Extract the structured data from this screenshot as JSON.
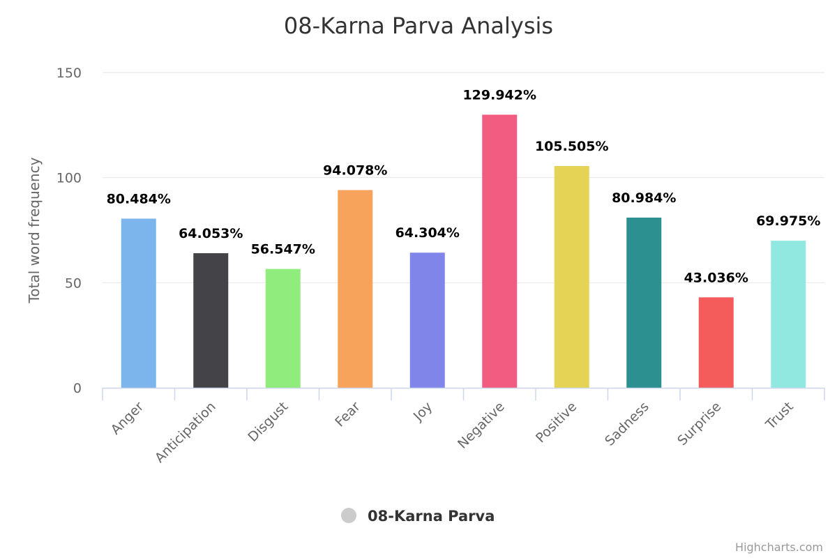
{
  "chart_data": {
    "type": "bar",
    "title": "08-Karna Parva Analysis",
    "ylabel": "Total word frequency",
    "ylim": [
      0,
      150
    ],
    "yticks": [
      0,
      50,
      100,
      150
    ],
    "grid": true,
    "legend_placement": "bottom-center",
    "categories": [
      "Anger",
      "Anticipation",
      "Disgust",
      "Fear",
      "Joy",
      "Negative",
      "Positive",
      "Sadness",
      "Surprise",
      "Trust"
    ],
    "series": [
      {
        "name": "08-Karna Parva",
        "values": [
          80.484,
          64.053,
          56.547,
          94.078,
          64.304,
          129.942,
          105.505,
          80.984,
          43.036,
          69.975
        ],
        "labels": [
          "80.484%",
          "64.053%",
          "56.547%",
          "94.078%",
          "64.304%",
          "129.942%",
          "105.505%",
          "80.984%",
          "43.036%",
          "69.975%"
        ],
        "colors": [
          "#7cb5ec",
          "#434348",
          "#90ed7d",
          "#f7a35c",
          "#8085e9",
          "#f15c80",
          "#e4d354",
          "#2b908f",
          "#f45b5b",
          "#91e8e1"
        ]
      }
    ],
    "legend_symbol_color": "#cccccc",
    "credits": "Highcharts.com"
  }
}
